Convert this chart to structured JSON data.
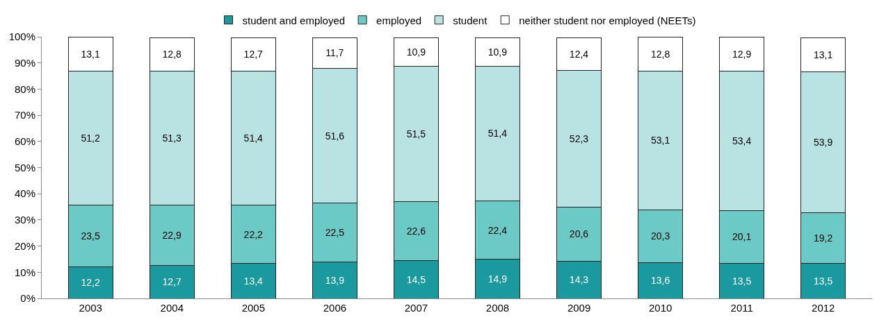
{
  "chart_data": {
    "type": "bar",
    "stacked": true,
    "categories": [
      "2003",
      "2004",
      "2005",
      "2006",
      "2007",
      "2008",
      "2009",
      "2010",
      "2011",
      "2012"
    ],
    "series": [
      {
        "name": "student and employed",
        "color": "#1a9a9e",
        "values": [
          12.2,
          12.7,
          13.4,
          13.9,
          14.5,
          14.9,
          14.3,
          13.6,
          13.5,
          13.5
        ],
        "value_labels": [
          "12,2",
          "12,7",
          "13,4",
          "13,9",
          "14,5",
          "14,9",
          "14,3",
          "13,6",
          "13,5",
          "13,5"
        ]
      },
      {
        "name": "employed",
        "color": "#6ccac6",
        "values": [
          23.5,
          22.9,
          22.2,
          22.5,
          22.6,
          22.4,
          20.6,
          20.3,
          20.1,
          19.2
        ],
        "value_labels": [
          "23,5",
          "22,9",
          "22,2",
          "22,5",
          "22,6",
          "22,4",
          "20,6",
          "20,3",
          "20,1",
          "19,2"
        ]
      },
      {
        "name": "student",
        "color": "#b9e3e3",
        "values": [
          51.2,
          51.3,
          51.4,
          51.6,
          51.5,
          51.4,
          52.3,
          53.1,
          53.4,
          53.9
        ],
        "value_labels": [
          "51,2",
          "51,3",
          "51,4",
          "51,6",
          "51,5",
          "51,4",
          "52,3",
          "53,1",
          "53,4",
          "53,9"
        ]
      },
      {
        "name": "neither student nor employed (NEETs)",
        "color": "#ffffff",
        "values": [
          13.1,
          12.8,
          12.7,
          11.7,
          10.9,
          10.9,
          12.4,
          12.8,
          12.9,
          13.1
        ],
        "value_labels": [
          "13,1",
          "12,8",
          "12,7",
          "11,7",
          "10,9",
          "10,9",
          "12,4",
          "12,8",
          "12,9",
          "13,1"
        ]
      }
    ],
    "ylim": [
      0,
      100
    ],
    "yticks": [
      {
        "value": 0,
        "label": "0%"
      },
      {
        "value": 10,
        "label": "10%"
      },
      {
        "value": 20,
        "label": "20%"
      },
      {
        "value": 30,
        "label": "30%"
      },
      {
        "value": 40,
        "label": "40%"
      },
      {
        "value": 50,
        "label": "50%"
      },
      {
        "value": 60,
        "label": "60%"
      },
      {
        "value": 70,
        "label": "70%"
      },
      {
        "value": 80,
        "label": "80%"
      },
      {
        "value": 90,
        "label": "90%"
      },
      {
        "value": 100,
        "label": "100%"
      }
    ],
    "legend": "top"
  }
}
